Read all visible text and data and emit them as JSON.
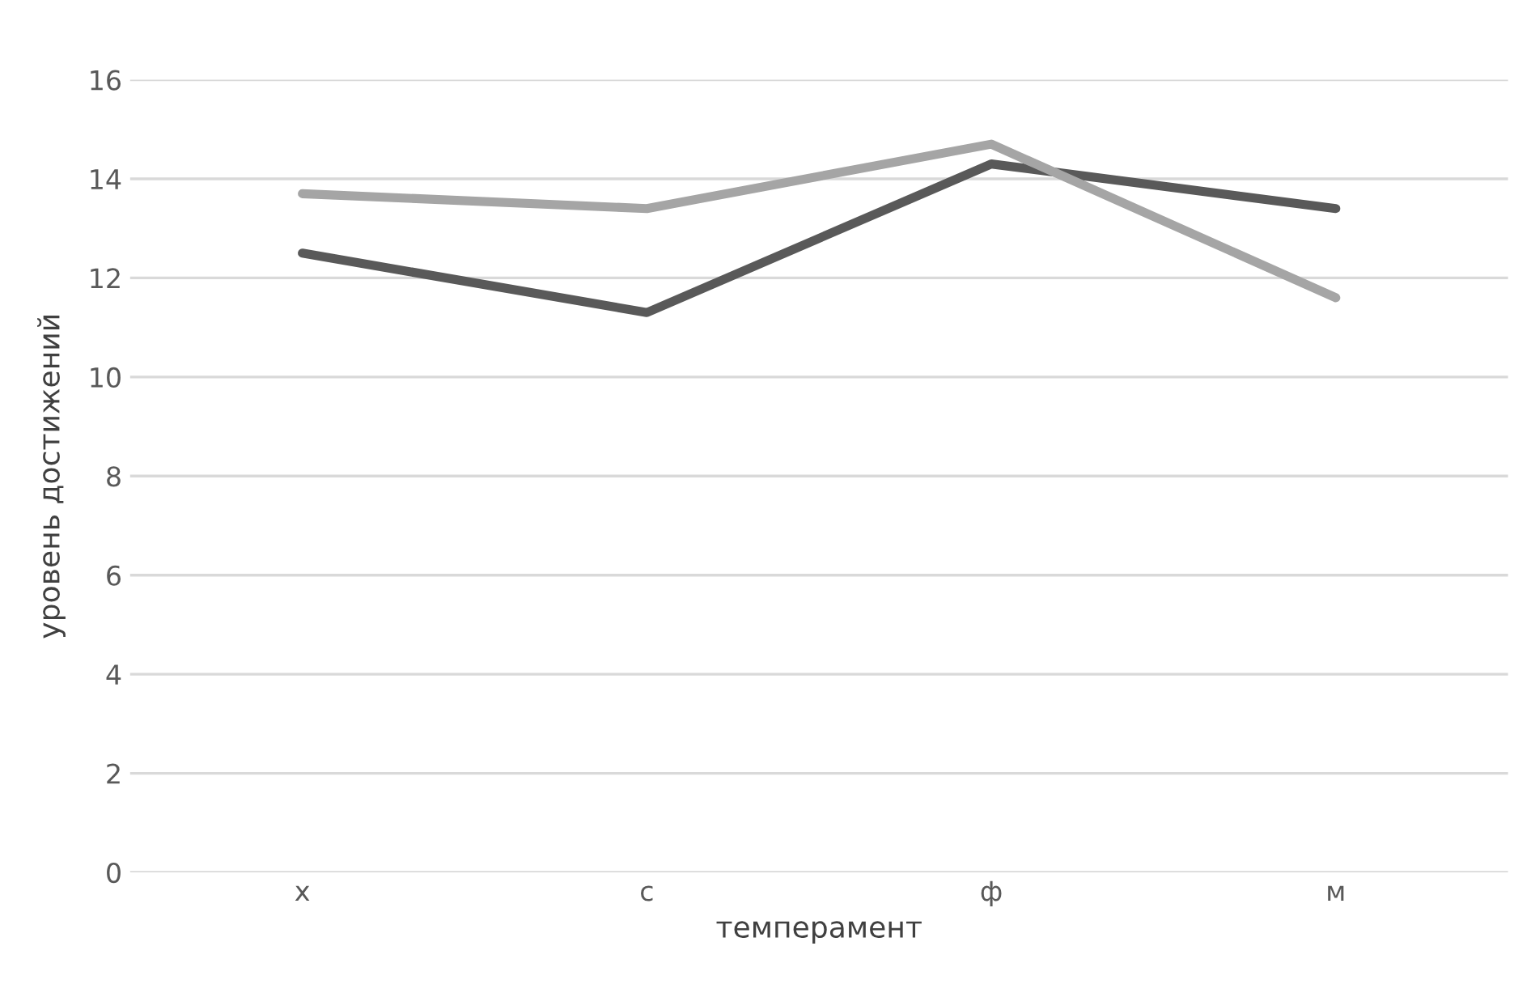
{
  "chart_data": {
    "type": "line",
    "xlabel": "темперамент",
    "ylabel": "уровень достижений",
    "categories": [
      "х",
      "с",
      "ф",
      "м"
    ],
    "series": [
      {
        "color": "#595959",
        "values": [
          12.5,
          11.3,
          14.3,
          13.4
        ]
      },
      {
        "color": "#a5a5a5",
        "values": [
          13.7,
          13.4,
          14.7,
          11.6
        ]
      }
    ],
    "ylim": [
      0,
      16
    ],
    "yticks": [
      0,
      2,
      4,
      6,
      8,
      10,
      12,
      14,
      16
    ],
    "grid": "y",
    "marker": "none",
    "line_style": "solid"
  }
}
